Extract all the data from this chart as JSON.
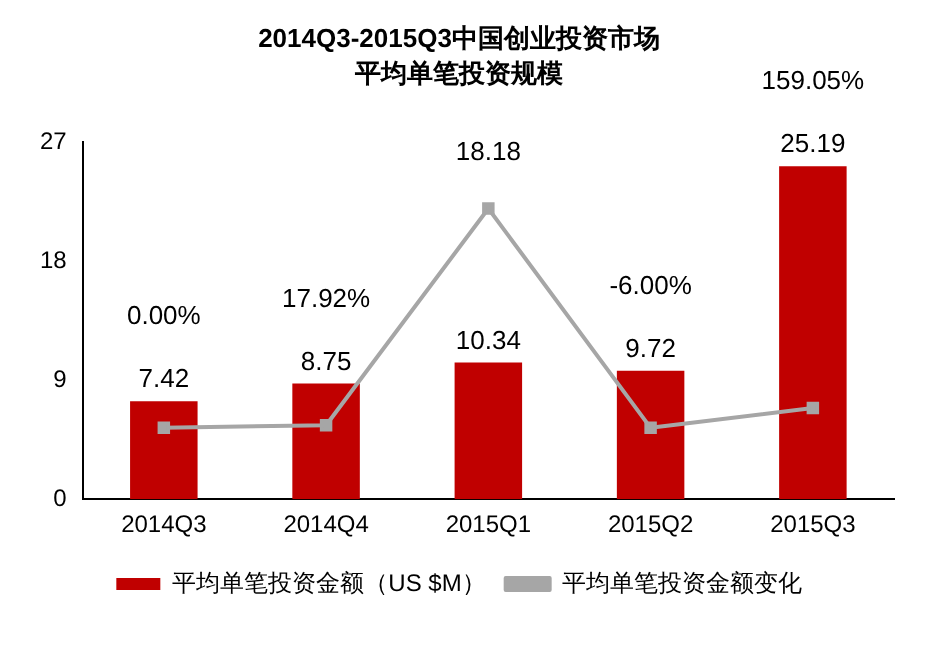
{
  "chart_data": {
    "type": "bar",
    "title": "2014Q3-2015Q3中国创业投资市场",
    "subtitle": "平均单笔投资规模",
    "categories": [
      "2014Q3",
      "2014Q4",
      "2015Q1",
      "2015Q2",
      "2015Q3"
    ],
    "series": [
      {
        "name": "平均单笔投资金额（US $M）",
        "color": "#c00000",
        "values": [
          7.42,
          8.75,
          10.34,
          9.72,
          25.19
        ],
        "value_labels": [
          "7.42",
          "8.75",
          "10.34",
          "9.72",
          "25.19"
        ]
      },
      {
        "name": "平均单笔投资金额变化",
        "type": "line",
        "color": "#a6a6a6",
        "marker": "square",
        "values": [
          5.4,
          5.6,
          22.0,
          5.4,
          6.9
        ]
      }
    ],
    "annotations": [
      "0.00%",
      "17.92%",
      "18.18",
      "-6.00%",
      "159.05%"
    ],
    "ylim": [
      0,
      27
    ],
    "yticks": [
      0,
      9,
      18,
      27
    ],
    "grid": false,
    "legend": "bottom"
  }
}
